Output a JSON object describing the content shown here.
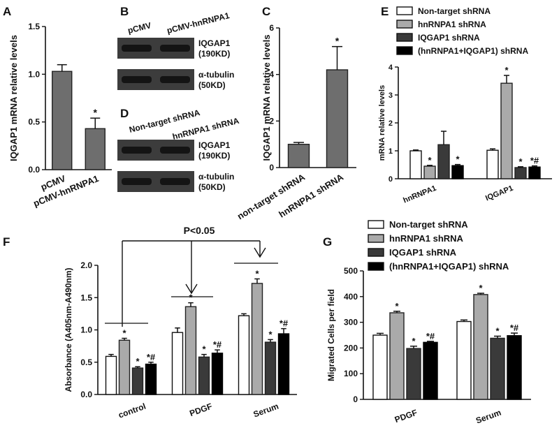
{
  "figure": {
    "panel_letters": [
      "A",
      "B",
      "C",
      "D",
      "E",
      "F",
      "G"
    ],
    "blot_b": {
      "lanes": [
        "pCMV",
        "pCMV-hnRNPA1"
      ],
      "bands": [
        {
          "name": "IQGAP1",
          "size": "(190KD)"
        },
        {
          "name": "α-tubulin",
          "size": "(50KD)"
        }
      ]
    },
    "blot_d": {
      "lanes": [
        "Non-target shRNA",
        "hnRNPA1 shRNA"
      ],
      "bands": [
        {
          "name": "IQGAP1",
          "size": "(190KD)"
        },
        {
          "name": "α-tubulin",
          "size": "(50KD)"
        }
      ]
    },
    "sig_marker": "*",
    "sig_marker2": "*#",
    "pvalue_text": "P<0.05",
    "colors": {
      "white": "#ffffff",
      "light_gray": "#aaaaaa",
      "dark_gray": "#3a3a3a",
      "black": "#000000",
      "gray": "#6e6e6e"
    }
  },
  "chart_data": [
    {
      "panel": "A",
      "type": "bar",
      "title": "",
      "categories": [
        "pCMV",
        "pCMV-hnRNPA1"
      ],
      "values": [
        1.03,
        0.43
      ],
      "errors": [
        0.07,
        0.11
      ],
      "significance": [
        "",
        "*"
      ],
      "xlabel": "",
      "ylabel": "IQGAP1 mRNA relative levels",
      "ylim": [
        0,
        1.5
      ],
      "yticks": [
        "0.0",
        "0.5",
        "1.0",
        "1.5"
      ]
    },
    {
      "panel": "C",
      "type": "bar",
      "title": "",
      "categories": [
        "non-target shRNA",
        "hnRNPA1 shRNA"
      ],
      "values": [
        1.0,
        4.2
      ],
      "errors": [
        0.08,
        1.0
      ],
      "significance": [
        "",
        "*"
      ],
      "xlabel": "",
      "ylabel": "IQGAP1 mRNA relative levels",
      "ylim": [
        0,
        6
      ],
      "yticks": [
        "0",
        "2",
        "4",
        "6"
      ]
    },
    {
      "panel": "E",
      "type": "bar",
      "title": "",
      "categories": [
        "hnRNPA1",
        "IQGAP1"
      ],
      "legend": [
        "Non-target shRNA",
        "hnRNPA1 shRNA",
        "IQGAP1 shRNA",
        "(hnRNPA1+IQGAP1) shRNA"
      ],
      "series": [
        {
          "name": "Non-target shRNA",
          "values": [
            1.0,
            1.02
          ],
          "errors": [
            0.03,
            0.05
          ],
          "sig": [
            "",
            ""
          ]
        },
        {
          "name": "hnRNPA1 shRNA",
          "values": [
            0.45,
            3.42
          ],
          "errors": [
            0.03,
            0.28
          ],
          "sig": [
            "*",
            "*"
          ]
        },
        {
          "name": "IQGAP1 shRNA",
          "values": [
            1.22,
            0.4
          ],
          "errors": [
            0.48,
            0.03
          ],
          "sig": [
            "",
            "*"
          ]
        },
        {
          "name": "(hnRNPA1+IQGAP1) shRNA",
          "values": [
            0.47,
            0.42
          ],
          "errors": [
            0.04,
            0.04
          ],
          "sig": [
            "*",
            "*#"
          ]
        }
      ],
      "xlabel": "",
      "ylabel": "mRNA relative levels",
      "ylim": [
        0,
        4
      ],
      "yticks": [
        "0",
        "1",
        "2",
        "3",
        "4"
      ]
    },
    {
      "panel": "F",
      "type": "bar",
      "title": "",
      "categories": [
        "control",
        "PDGF",
        "Serum"
      ],
      "series": [
        {
          "name": "Non-target shRNA",
          "values": [
            0.59,
            0.96,
            1.22
          ],
          "errors": [
            0.03,
            0.07,
            0.03
          ],
          "sig": [
            "",
            "",
            ""
          ]
        },
        {
          "name": "hnRNPA1 shRNA",
          "values": [
            0.84,
            1.36,
            1.72
          ],
          "errors": [
            0.03,
            0.06,
            0.07
          ],
          "sig": [
            "*",
            "*",
            "*"
          ]
        },
        {
          "name": "IQGAP1 shRNA",
          "values": [
            0.41,
            0.58,
            0.81
          ],
          "errors": [
            0.02,
            0.04,
            0.04
          ],
          "sig": [
            "*",
            "*",
            "*"
          ]
        },
        {
          "name": "(hnRNPA1+IQGAP1) shRNA",
          "values": [
            0.47,
            0.64,
            0.94
          ],
          "errors": [
            0.03,
            0.05,
            0.08
          ],
          "sig": [
            "*#",
            "*#",
            "*#"
          ]
        }
      ],
      "xlabel": "",
      "ylabel": "Absorbance (A405nm-A490nm)",
      "ylabel_parts": [
        "Absorbance (A",
        "405nm",
        "-A",
        "490nm",
        ")"
      ],
      "ylim": [
        0,
        2.0
      ],
      "yticks": [
        "0.0",
        "0.5",
        "1.0",
        "1.5",
        "2.0"
      ],
      "annotation": "P<0.05"
    },
    {
      "panel": "G",
      "type": "bar",
      "title": "",
      "categories": [
        "PDGF",
        "Serum"
      ],
      "legend": [
        "Non-target shRNA",
        "hnRNPA1 shRNA",
        "IQGAP1 shRNA",
        "(hnRNPA1+IQGAP1) shRNA"
      ],
      "series": [
        {
          "name": "Non-target shRNA",
          "values": [
            250,
            303
          ],
          "errors": [
            7,
            6
          ],
          "sig": [
            "",
            ""
          ]
        },
        {
          "name": "hnRNPA1 shRNA",
          "values": [
            337,
            408
          ],
          "errors": [
            6,
            5
          ],
          "sig": [
            "*",
            "*"
          ]
        },
        {
          "name": "IQGAP1 shRNA",
          "values": [
            198,
            238
          ],
          "errors": [
            9,
            8
          ],
          "sig": [
            "*",
            "*"
          ]
        },
        {
          "name": "(hnRNPA1+IQGAP1) shRNA",
          "values": [
            222,
            248
          ],
          "errors": [
            4,
            10
          ],
          "sig": [
            "*#",
            "*#"
          ]
        }
      ],
      "xlabel": "",
      "ylabel": "Migrated Cells per field",
      "ylim": [
        0,
        500
      ],
      "yticks": [
        "0",
        "100",
        "200",
        "300",
        "400",
        "500"
      ]
    }
  ]
}
